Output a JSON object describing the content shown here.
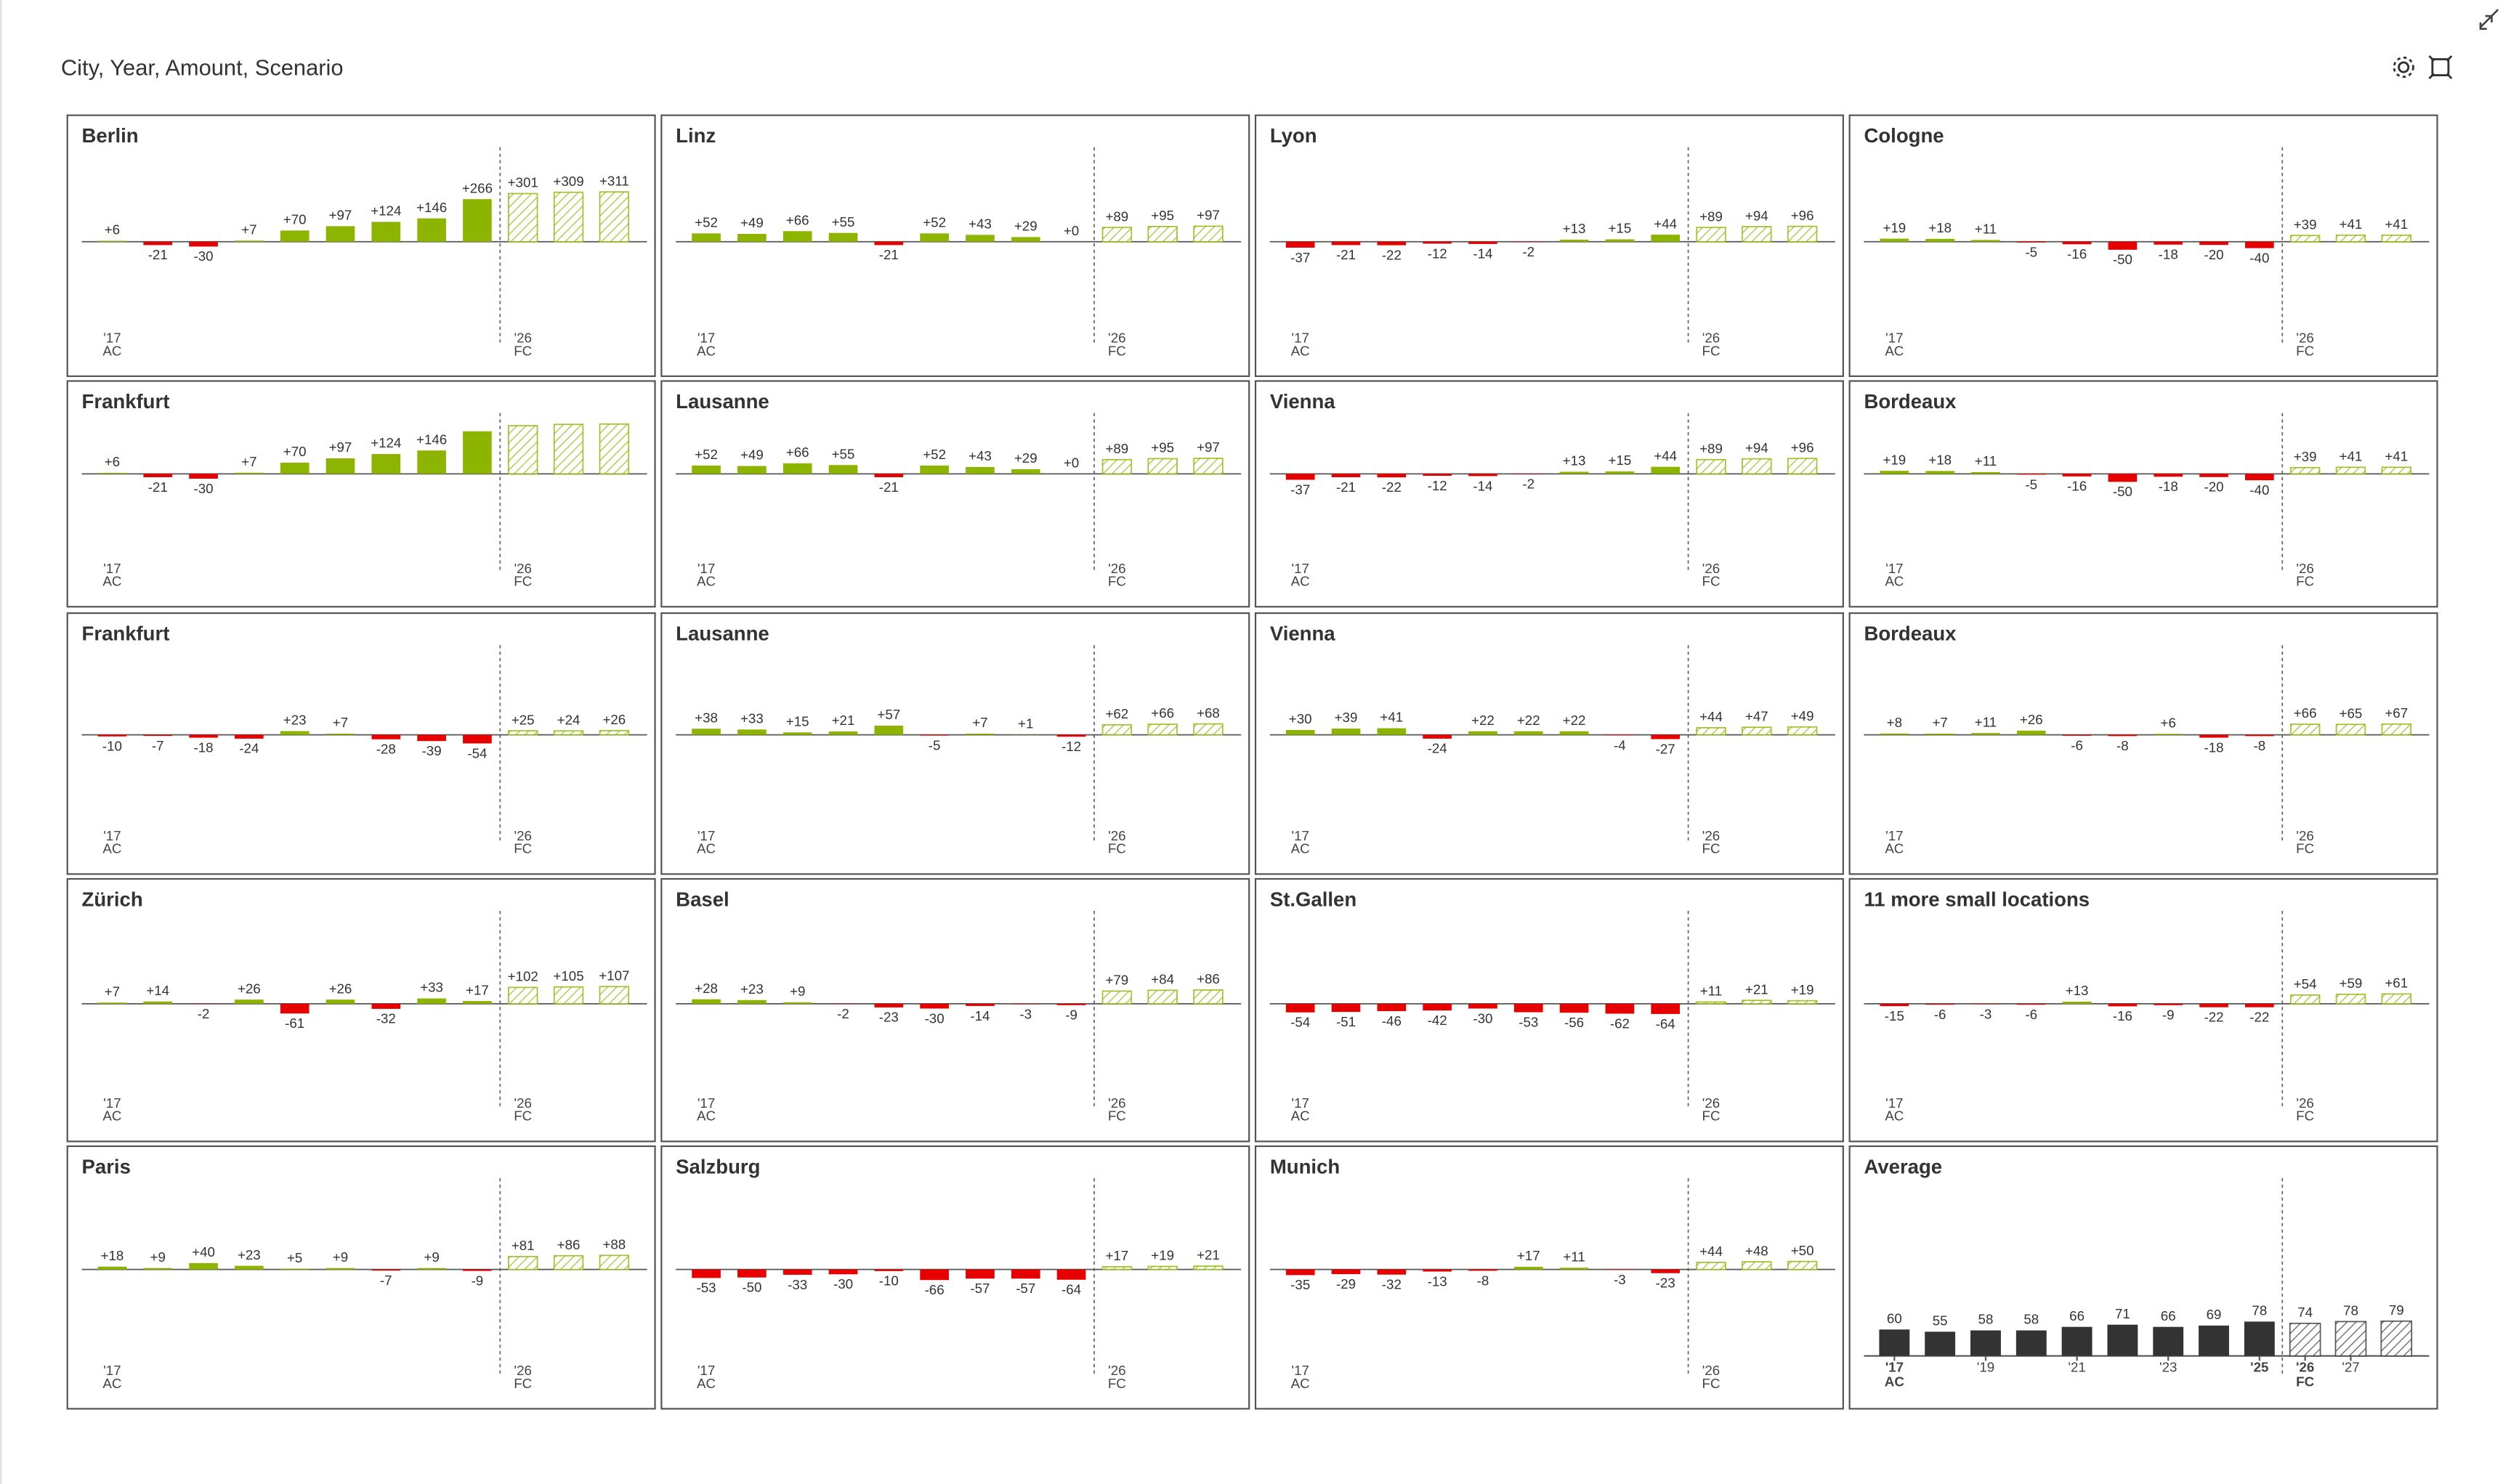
{
  "title": "City, Year, Amount, Scenario",
  "chart_data": [
    {
      "type": "bar",
      "title": "Berlin",
      "categories": [
        "'17",
        null,
        null,
        null,
        null,
        null,
        null,
        null,
        null,
        "'26",
        null,
        null
      ],
      "scenario": [
        "AC",
        "AC",
        "AC",
        "AC",
        "AC",
        "AC",
        "AC",
        "AC",
        "AC",
        "FC",
        "FC",
        "FC"
      ],
      "values": [
        6,
        -21,
        -30,
        7,
        70,
        97,
        124,
        146,
        266,
        301,
        309,
        311
      ],
      "value_labels": [
        "+6",
        "-21",
        "-30",
        "+7",
        "+70",
        "+97",
        "+124",
        "+146",
        "+266",
        "+301",
        "+309",
        "+311"
      ],
      "ylim": [
        -600,
        600
      ],
      "colors": {
        "positive": "#8cb400",
        "negative": "#e60000"
      }
    },
    {
      "type": "bar",
      "title": "Linz",
      "categories": [
        "'17",
        null,
        null,
        null,
        null,
        null,
        null,
        null,
        null,
        "'26",
        null,
        null
      ],
      "scenario": [
        "AC",
        "AC",
        "AC",
        "AC",
        "AC",
        "AC",
        "AC",
        "AC",
        "AC",
        "FC",
        "FC",
        "FC"
      ],
      "values": [
        52,
        49,
        66,
        55,
        -21,
        52,
        43,
        29,
        0,
        89,
        95,
        97
      ],
      "value_labels": [
        "+52",
        "+49",
        "+66",
        "+55",
        "-21",
        "+52",
        "+43",
        "+29",
        "+0",
        "+89",
        "+95",
        "+97"
      ],
      "ylim": [
        -600,
        600
      ],
      "colors": {
        "positive": "#8cb400",
        "negative": "#e60000"
      }
    },
    {
      "type": "bar",
      "title": "Lyon",
      "categories": [
        "'17",
        null,
        null,
        null,
        null,
        null,
        null,
        null,
        null,
        "'26",
        null,
        null
      ],
      "scenario": [
        "AC",
        "AC",
        "AC",
        "AC",
        "AC",
        "AC",
        "AC",
        "AC",
        "AC",
        "FC",
        "FC",
        "FC"
      ],
      "values": [
        -37,
        -21,
        -22,
        -12,
        -14,
        -2,
        13,
        15,
        44,
        89,
        94,
        96
      ],
      "value_labels": [
        "-37",
        "-21",
        "-22",
        "-12",
        "-14",
        "-2",
        "+13",
        "+15",
        "+44",
        "+89",
        "+94",
        "+96"
      ],
      "ylim": [
        -600,
        600
      ],
      "colors": {
        "positive": "#8cb400",
        "negative": "#e60000"
      }
    },
    {
      "type": "bar",
      "title": "Cologne",
      "categories": [
        "'17",
        null,
        null,
        null,
        null,
        null,
        null,
        null,
        null,
        "'26",
        null,
        null
      ],
      "scenario": [
        "AC",
        "AC",
        "AC",
        "AC",
        "AC",
        "AC",
        "AC",
        "AC",
        "AC",
        "FC",
        "FC",
        "FC"
      ],
      "values": [
        19,
        18,
        11,
        -5,
        -16,
        -50,
        -18,
        -20,
        -40,
        39,
        41,
        41
      ],
      "value_labels": [
        "+19",
        "+18",
        "+11",
        "-5",
        "-16",
        "-50",
        "-18",
        "-20",
        "-40",
        "+39",
        "+41",
        "+41"
      ],
      "ylim": [
        -600,
        600
      ],
      "colors": {
        "positive": "#8cb400",
        "negative": "#e60000"
      }
    },
    {
      "type": "bar",
      "title": "Frankfurt",
      "categories": [
        "'17",
        null,
        null,
        null,
        null,
        null,
        null,
        null,
        null,
        "'26",
        null,
        null
      ],
      "scenario": [
        "AC",
        "AC",
        "AC",
        "AC",
        "AC",
        "AC",
        "AC",
        "AC",
        "AC",
        "FC",
        "FC",
        "FC"
      ],
      "values": [
        6,
        -21,
        -30,
        7,
        70,
        97,
        124,
        146,
        266,
        301,
        309,
        311
      ],
      "value_labels": [
        "+6",
        "-21",
        "-30",
        "+7",
        "+70",
        "+97",
        "+124",
        "+146",
        null,
        null,
        null,
        null
      ],
      "ylim": [
        -600,
        600
      ],
      "colors": {
        "positive": "#8cb400",
        "negative": "#e60000"
      }
    },
    {
      "type": "bar",
      "title": "Lausanne",
      "categories": [
        "'17",
        null,
        null,
        null,
        null,
        null,
        null,
        null,
        null,
        "'26",
        null,
        null
      ],
      "scenario": [
        "AC",
        "AC",
        "AC",
        "AC",
        "AC",
        "AC",
        "AC",
        "AC",
        "AC",
        "FC",
        "FC",
        "FC"
      ],
      "values": [
        52,
        49,
        66,
        55,
        -21,
        52,
        43,
        29,
        0,
        89,
        95,
        97
      ],
      "value_labels": [
        "+52",
        "+49",
        "+66",
        "+55",
        "-21",
        "+52",
        "+43",
        "+29",
        "+0",
        "+89",
        "+95",
        "+97"
      ],
      "ylim": [
        -600,
        600
      ],
      "colors": {
        "positive": "#8cb400",
        "negative": "#e60000"
      }
    },
    {
      "type": "bar",
      "title": "Vienna",
      "categories": [
        "'17",
        null,
        null,
        null,
        null,
        null,
        null,
        null,
        null,
        "'26",
        null,
        null
      ],
      "scenario": [
        "AC",
        "AC",
        "AC",
        "AC",
        "AC",
        "AC",
        "AC",
        "AC",
        "AC",
        "FC",
        "FC",
        "FC"
      ],
      "values": [
        -37,
        -21,
        -22,
        -12,
        -14,
        -2,
        13,
        15,
        44,
        89,
        94,
        96
      ],
      "value_labels": [
        "-37",
        "-21",
        "-22",
        "-12",
        "-14",
        "-2",
        "+13",
        "+15",
        "+44",
        "+89",
        "+94",
        "+96"
      ],
      "ylim": [
        -600,
        600
      ],
      "colors": {
        "positive": "#8cb400",
        "negative": "#e60000"
      }
    },
    {
      "type": "bar",
      "title": "Bordeaux",
      "categories": [
        "'17",
        null,
        null,
        null,
        null,
        null,
        null,
        null,
        null,
        "'26",
        null,
        null
      ],
      "scenario": [
        "AC",
        "AC",
        "AC",
        "AC",
        "AC",
        "AC",
        "AC",
        "AC",
        "AC",
        "FC",
        "FC",
        "FC"
      ],
      "values": [
        19,
        18,
        11,
        -5,
        -16,
        -50,
        -18,
        -20,
        -40,
        39,
        41,
        41
      ],
      "value_labels": [
        "+19",
        "+18",
        "+11",
        "-5",
        "-16",
        "-50",
        "-18",
        "-20",
        "-40",
        "+39",
        "+41",
        "+41"
      ],
      "ylim": [
        -600,
        600
      ],
      "colors": {
        "positive": "#8cb400",
        "negative": "#e60000"
      }
    },
    {
      "type": "bar",
      "title": "Frankfurt",
      "categories": [
        "'17",
        null,
        null,
        null,
        null,
        null,
        null,
        null,
        null,
        "'26",
        null,
        null
      ],
      "scenario": [
        "AC",
        "AC",
        "AC",
        "AC",
        "AC",
        "AC",
        "AC",
        "AC",
        "AC",
        "FC",
        "FC",
        "FC"
      ],
      "values": [
        -10,
        -7,
        -18,
        -24,
        23,
        7,
        -28,
        -39,
        -54,
        25,
        24,
        26
      ],
      "value_labels": [
        "-10",
        "-7",
        "-18",
        "-24",
        "+23",
        "+7",
        "-28",
        "-39",
        "-54",
        "+25",
        "+24",
        "+26"
      ],
      "ylim": [
        -600,
        600
      ],
      "colors": {
        "positive": "#8cb400",
        "negative": "#e60000"
      }
    },
    {
      "type": "bar",
      "title": "Lausanne",
      "categories": [
        "'17",
        null,
        null,
        null,
        null,
        null,
        null,
        null,
        null,
        "'26",
        null,
        null
      ],
      "scenario": [
        "AC",
        "AC",
        "AC",
        "AC",
        "AC",
        "AC",
        "AC",
        "AC",
        "AC",
        "FC",
        "FC",
        "FC"
      ],
      "values": [
        38,
        33,
        15,
        21,
        57,
        -5,
        7,
        1,
        -12,
        62,
        66,
        68
      ],
      "value_labels": [
        "+38",
        "+33",
        "+15",
        "+21",
        "+57",
        "-5",
        "+7",
        "+1",
        "-12",
        "+62",
        "+66",
        "+68"
      ],
      "ylim": [
        -600,
        600
      ],
      "colors": {
        "positive": "#8cb400",
        "negative": "#e60000"
      }
    },
    {
      "type": "bar",
      "title": "Vienna",
      "categories": [
        "'17",
        null,
        null,
        null,
        null,
        null,
        null,
        null,
        null,
        "'26",
        null,
        null
      ],
      "scenario": [
        "AC",
        "AC",
        "AC",
        "AC",
        "AC",
        "AC",
        "AC",
        "AC",
        "AC",
        "FC",
        "FC",
        "FC"
      ],
      "values": [
        30,
        39,
        41,
        -24,
        22,
        22,
        22,
        -4,
        -27,
        44,
        47,
        49
      ],
      "value_labels": [
        "+30",
        "+39",
        "+41",
        "-24",
        "+22",
        "+22",
        "+22",
        "-4",
        "-27",
        "+44",
        "+47",
        "+49"
      ],
      "ylim": [
        -600,
        600
      ],
      "colors": {
        "positive": "#8cb400",
        "negative": "#e60000"
      }
    },
    {
      "type": "bar",
      "title": "Bordeaux",
      "categories": [
        "'17",
        null,
        null,
        null,
        null,
        null,
        null,
        null,
        null,
        "'26",
        null,
        null
      ],
      "scenario": [
        "AC",
        "AC",
        "AC",
        "AC",
        "AC",
        "AC",
        "AC",
        "AC",
        "AC",
        "FC",
        "FC",
        "FC"
      ],
      "values": [
        8,
        7,
        11,
        26,
        -6,
        -8,
        6,
        -18,
        -8,
        66,
        65,
        67
      ],
      "value_labels": [
        "+8",
        "+7",
        "+11",
        "+26",
        "-6",
        "-8",
        "+6",
        "-18",
        "-8",
        "+66",
        "+65",
        "+67"
      ],
      "ylim": [
        -600,
        600
      ],
      "colors": {
        "positive": "#8cb400",
        "negative": "#e60000"
      }
    },
    {
      "type": "bar",
      "title": "Zürich",
      "categories": [
        "'17",
        null,
        null,
        null,
        null,
        null,
        null,
        null,
        null,
        "'26",
        null,
        null
      ],
      "scenario": [
        "AC",
        "AC",
        "AC",
        "AC",
        "AC",
        "AC",
        "AC",
        "AC",
        "AC",
        "FC",
        "FC",
        "FC"
      ],
      "values": [
        7,
        14,
        -2,
        26,
        -61,
        26,
        -32,
        33,
        17,
        102,
        105,
        107
      ],
      "value_labels": [
        "+7",
        "+14",
        "-2",
        "+26",
        "-61",
        "+26",
        "-32",
        "+33",
        "+17",
        "+102",
        "+105",
        "+107"
      ],
      "ylim": [
        -600,
        600
      ],
      "colors": {
        "positive": "#8cb400",
        "negative": "#e60000"
      }
    },
    {
      "type": "bar",
      "title": "Basel",
      "categories": [
        "'17",
        null,
        null,
        null,
        null,
        null,
        null,
        null,
        null,
        "'26",
        null,
        null
      ],
      "scenario": [
        "AC",
        "AC",
        "AC",
        "AC",
        "AC",
        "AC",
        "AC",
        "AC",
        "AC",
        "FC",
        "FC",
        "FC"
      ],
      "values": [
        28,
        23,
        9,
        -2,
        -23,
        -30,
        -14,
        -3,
        -9,
        79,
        84,
        86
      ],
      "value_labels": [
        "+28",
        "+23",
        "+9",
        "-2",
        "-23",
        "-30",
        "-14",
        "-3",
        "-9",
        "+79",
        "+84",
        "+86"
      ],
      "ylim": [
        -600,
        600
      ],
      "colors": {
        "positive": "#8cb400",
        "negative": "#e60000"
      }
    },
    {
      "type": "bar",
      "title": "St.Gallen",
      "categories": [
        "'17",
        null,
        null,
        null,
        null,
        null,
        null,
        null,
        null,
        "'26",
        null,
        null
      ],
      "scenario": [
        "AC",
        "AC",
        "AC",
        "AC",
        "AC",
        "AC",
        "AC",
        "AC",
        "AC",
        "FC",
        "FC",
        "FC"
      ],
      "values": [
        -54,
        -51,
        -46,
        -42,
        -30,
        -53,
        -56,
        -62,
        -64,
        11,
        21,
        19
      ],
      "value_labels": [
        "-54",
        "-51",
        "-46",
        "-42",
        "-30",
        "-53",
        "-56",
        "-62",
        "-64",
        "+11",
        "+21",
        "+19"
      ],
      "ylim": [
        -600,
        600
      ],
      "colors": {
        "positive": "#8cb400",
        "negative": "#e60000"
      }
    },
    {
      "type": "bar",
      "title": "11 more small locations",
      "categories": [
        "'17",
        null,
        null,
        null,
        null,
        null,
        null,
        null,
        null,
        "'26",
        null,
        null
      ],
      "scenario": [
        "AC",
        "AC",
        "AC",
        "AC",
        "AC",
        "AC",
        "AC",
        "AC",
        "AC",
        "FC",
        "FC",
        "FC"
      ],
      "values": [
        -15,
        -6,
        -3,
        -6,
        13,
        -16,
        -9,
        -22,
        -22,
        54,
        59,
        61
      ],
      "value_labels": [
        "-15",
        "-6",
        "-3",
        "-6",
        "+13",
        "-16",
        "-9",
        "-22",
        "-22",
        "+54",
        "+59",
        "+61"
      ],
      "ylim": [
        -600,
        600
      ],
      "colors": {
        "positive": "#8cb400",
        "negative": "#e60000"
      }
    },
    {
      "type": "bar",
      "title": "Paris",
      "categories": [
        "'17",
        null,
        null,
        null,
        null,
        null,
        null,
        null,
        null,
        "'26",
        null,
        null
      ],
      "scenario": [
        "AC",
        "AC",
        "AC",
        "AC",
        "AC",
        "AC",
        "AC",
        "AC",
        "AC",
        "FC",
        "FC",
        "FC"
      ],
      "values": [
        18,
        9,
        40,
        23,
        5,
        9,
        -7,
        9,
        -9,
        81,
        86,
        88
      ],
      "value_labels": [
        "+18",
        "+9",
        "+40",
        "+23",
        "+5",
        "+9",
        "-7",
        "+9",
        "-9",
        "+81",
        "+86",
        "+88"
      ],
      "ylim": [
        -600,
        600
      ],
      "colors": {
        "positive": "#8cb400",
        "negative": "#e60000"
      }
    },
    {
      "type": "bar",
      "title": "Salzburg",
      "categories": [
        "'17",
        null,
        null,
        null,
        null,
        null,
        null,
        null,
        null,
        "'26",
        null,
        null
      ],
      "scenario": [
        "AC",
        "AC",
        "AC",
        "AC",
        "AC",
        "AC",
        "AC",
        "AC",
        "AC",
        "FC",
        "FC",
        "FC"
      ],
      "values": [
        -53,
        -50,
        -33,
        -30,
        -10,
        -66,
        -57,
        -57,
        -64,
        17,
        19,
        21
      ],
      "value_labels": [
        "-53",
        "-50",
        "-33",
        "-30",
        "-10",
        "-66",
        "-57",
        "-57",
        "-64",
        "+17",
        "+19",
        "+21"
      ],
      "ylim": [
        -600,
        600
      ],
      "colors": {
        "positive": "#8cb400",
        "negative": "#e60000"
      }
    },
    {
      "type": "bar",
      "title": "Munich",
      "categories": [
        "'17",
        null,
        null,
        null,
        null,
        null,
        null,
        null,
        null,
        "'26",
        null,
        null
      ],
      "scenario": [
        "AC",
        "AC",
        "AC",
        "AC",
        "AC",
        "AC",
        "AC",
        "AC",
        "AC",
        "FC",
        "FC",
        "FC"
      ],
      "values": [
        -35,
        -29,
        -32,
        -13,
        -8,
        17,
        11,
        -3,
        -23,
        44,
        48,
        50
      ],
      "value_labels": [
        "-35",
        "-29",
        "-32",
        "-13",
        "-8",
        "+17",
        "+11",
        "-3",
        "-23",
        "+44",
        "+48",
        "+50"
      ],
      "ylim": [
        -600,
        600
      ],
      "colors": {
        "positive": "#8cb400",
        "negative": "#e60000"
      }
    },
    {
      "type": "bar",
      "title": "Average",
      "categories": [
        "'17",
        null,
        "'19",
        null,
        "'21",
        null,
        "'23",
        null,
        "'25",
        "'26",
        "'27",
        null
      ],
      "scenario": [
        "AC",
        "AC",
        "AC",
        "AC",
        "AC",
        "AC",
        "AC",
        "AC",
        "AC",
        "FC",
        "FC",
        "FC"
      ],
      "values": [
        60,
        55,
        58,
        58,
        66,
        71,
        66,
        69,
        78,
        74,
        78,
        79
      ],
      "ylim": [
        0,
        400
      ],
      "colors": {
        "positive": "#333333",
        "negative": "#333333"
      }
    }
  ]
}
